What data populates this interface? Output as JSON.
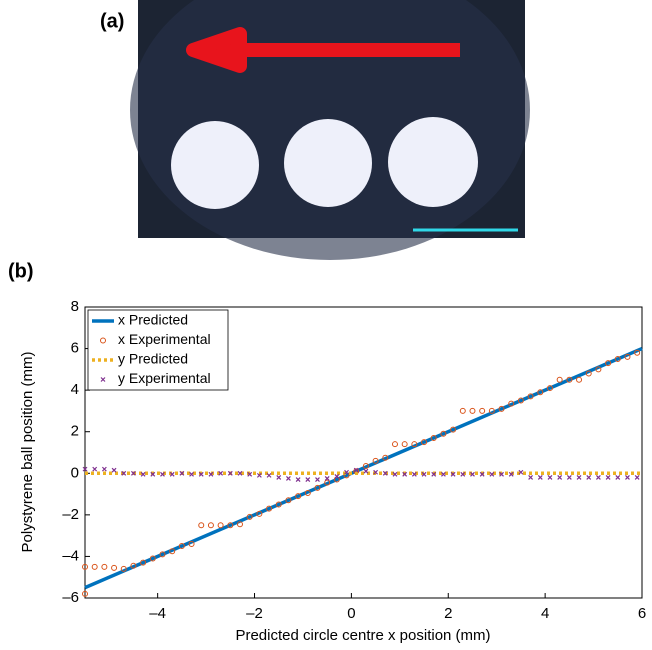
{
  "panel_labels": [
    "(a)",
    "(b)"
  ],
  "chart_data": {
    "type": "line",
    "xlabel": "Predicted circle centre x position (mm)",
    "ylabel": "Polystyrene ball position (mm)",
    "xlim": [
      -5.5,
      6
    ],
    "ylim": [
      -6,
      8
    ],
    "xticks": [
      {
        "value": -4,
        "label": "–4"
      },
      {
        "value": -2,
        "label": "–2"
      },
      0,
      2,
      4,
      6
    ],
    "yticks": [
      {
        "value": -6,
        "label": "–6"
      },
      {
        "value": -4,
        "label": "–4"
      },
      {
        "value": -2,
        "label": "–2"
      },
      0,
      2,
      4,
      6,
      8
    ],
    "legend": "upper left",
    "series": [
      {
        "name": "x Predicted",
        "color": "#0072bd",
        "style": "solid",
        "x": [
          -5.5,
          6
        ],
        "values": [
          -5.5,
          6
        ]
      },
      {
        "name": "x Experimental",
        "color": "#d95319",
        "style": "circle",
        "x": [
          -5.5,
          -5.5,
          -5.3,
          -5.1,
          -4.9,
          -4.7,
          -4.5,
          -4.3,
          -4.1,
          -3.9,
          -3.7,
          -3.5,
          -3.3,
          -3.1,
          -2.9,
          -2.7,
          -2.5,
          -2.3,
          -2.1,
          -1.9,
          -1.7,
          -1.5,
          -1.3,
          -1.1,
          -0.9,
          -0.7,
          -0.5,
          -0.3,
          -0.1,
          0.1,
          0.3,
          0.5,
          0.7,
          0.9,
          1.1,
          1.3,
          1.5,
          1.7,
          1.9,
          2.1,
          2.3,
          2.5,
          2.7,
          2.9,
          3.1,
          3.3,
          3.5,
          3.7,
          3.9,
          4.1,
          4.3,
          4.5,
          4.7,
          4.9,
          5.1,
          5.3,
          5.5,
          5.7,
          5.9
        ],
        "values": [
          -5.8,
          -4.5,
          -4.5,
          -4.5,
          -4.55,
          -4.6,
          -4.45,
          -4.3,
          -4.1,
          -3.9,
          -3.75,
          -3.5,
          -3.4,
          -2.5,
          -2.5,
          -2.5,
          -2.5,
          -2.45,
          -2.1,
          -1.95,
          -1.7,
          -1.5,
          -1.3,
          -1.1,
          -0.95,
          -0.7,
          -0.45,
          -0.3,
          -0.1,
          0.1,
          0.35,
          0.6,
          0.75,
          1.4,
          1.4,
          1.4,
          1.5,
          1.7,
          1.9,
          2.1,
          3.0,
          3.0,
          3.0,
          3.0,
          3.1,
          3.35,
          3.5,
          3.7,
          3.9,
          4.1,
          4.5,
          4.5,
          4.5,
          4.8,
          5.0,
          5.3,
          5.5,
          5.6,
          5.8
        ]
      },
      {
        "name": "y Predicted",
        "color": "#edb120",
        "style": "dotted",
        "x": [
          -5.5,
          6
        ],
        "values": [
          0,
          0
        ]
      },
      {
        "name": "y Experimental",
        "color": "#7e2f8e",
        "style": "cross",
        "x": [
          -5.5,
          -5.3,
          -5.1,
          -4.9,
          -4.7,
          -4.5,
          -4.3,
          -4.1,
          -3.9,
          -3.7,
          -3.5,
          -3.3,
          -3.1,
          -2.9,
          -2.7,
          -2.5,
          -2.3,
          -2.1,
          -1.9,
          -1.7,
          -1.5,
          -1.3,
          -1.1,
          -0.9,
          -0.7,
          -0.5,
          -0.3,
          -0.1,
          0.1,
          0.3,
          0.5,
          0.7,
          0.9,
          1.1,
          1.3,
          1.5,
          1.7,
          1.9,
          2.1,
          2.3,
          2.5,
          2.7,
          2.9,
          3.1,
          3.3,
          3.5,
          3.7,
          3.9,
          4.1,
          4.3,
          4.5,
          4.7,
          4.9,
          5.1,
          5.3,
          5.5,
          5.7,
          5.9
        ],
        "values": [
          0.2,
          0.2,
          0.2,
          0.15,
          0,
          0,
          -0.05,
          -0.05,
          -0.05,
          -0.05,
          0,
          -0.05,
          -0.05,
          -0.05,
          0,
          0,
          0,
          -0.05,
          -0.1,
          -0.1,
          -0.2,
          -0.25,
          -0.3,
          -0.3,
          -0.3,
          -0.25,
          -0.15,
          0.05,
          0.15,
          0.1,
          0.05,
          0,
          -0.05,
          -0.05,
          -0.05,
          -0.05,
          -0.05,
          -0.05,
          -0.05,
          -0.05,
          -0.05,
          -0.05,
          -0.05,
          -0.05,
          -0.05,
          0.05,
          -0.2,
          -0.2,
          -0.2,
          -0.2,
          -0.2,
          -0.2,
          -0.2,
          -0.2,
          -0.2,
          -0.2,
          -0.2,
          -0.2
        ]
      }
    ]
  }
}
